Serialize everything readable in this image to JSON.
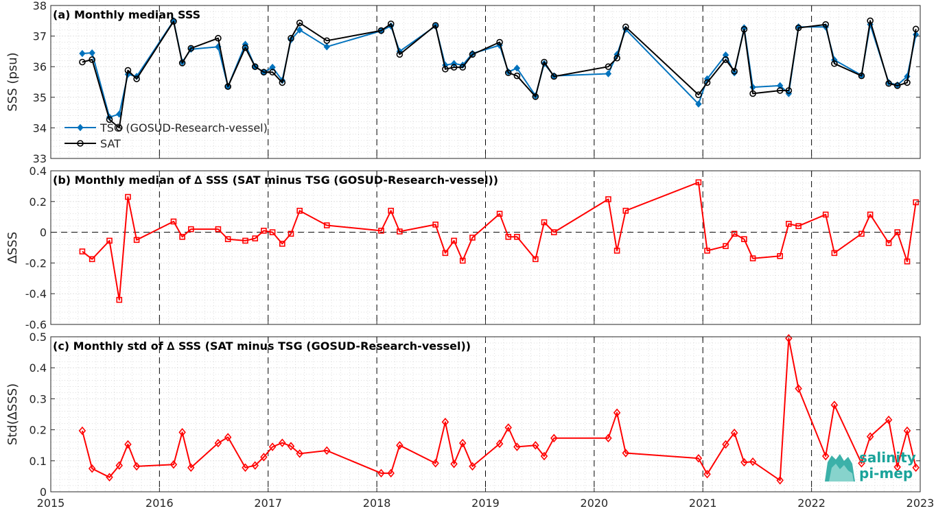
{
  "x_ticks": [
    "2015",
    "2016",
    "2017",
    "2018",
    "2019",
    "2020",
    "2021",
    "2022",
    "2023"
  ],
  "logo": {
    "line1": "salinity",
    "line2": "pi-mep",
    "color": "#1aa39a"
  },
  "chart_data": [
    {
      "type": "line",
      "title": "(a) Monthly median SSS",
      "ylabel": "SSS (psu)",
      "xlim": [
        2015.0,
        2023.0
      ],
      "ylim": [
        33,
        38
      ],
      "yticks": [
        "33",
        "34",
        "35",
        "36",
        "37",
        "38"
      ],
      "grid": true,
      "legend": "lower-left",
      "series": [
        {
          "name": "TSG (GOSUD-Research-vessel)",
          "color": "#0072bd",
          "marker": "diamond",
          "x": [
            2015.29,
            2015.38,
            2015.54,
            2015.63,
            2015.71,
            2015.79,
            2016.13,
            2016.21,
            2016.29,
            2016.54,
            2016.63,
            2016.79,
            2016.88,
            2016.96,
            2017.04,
            2017.13,
            2017.21,
            2017.29,
            2017.54,
            2018.04,
            2018.13,
            2018.21,
            2018.54,
            2018.63,
            2018.71,
            2018.79,
            2018.88,
            2019.13,
            2019.21,
            2019.29,
            2019.46,
            2019.54,
            2019.63,
            2020.13,
            2020.21,
            2020.29,
            2020.96,
            2021.04,
            2021.21,
            2021.29,
            2021.38,
            2021.46,
            2021.71,
            2021.79,
            2021.88,
            2022.13,
            2022.21,
            2022.46,
            2022.54,
            2022.71,
            2022.79,
            2022.88,
            2022.96
          ],
          "y": [
            36.43,
            36.45,
            34.35,
            34.45,
            35.75,
            35.68,
            37.5,
            36.15,
            36.57,
            36.65,
            35.35,
            36.73,
            36.0,
            35.82,
            35.98,
            35.55,
            36.88,
            37.2,
            36.65,
            37.17,
            37.33,
            36.5,
            37.33,
            36.05,
            36.1,
            36.05,
            36.43,
            36.7,
            35.83,
            35.95,
            35.05,
            36.1,
            35.7,
            35.77,
            36.4,
            37.22,
            34.78,
            35.6,
            36.38,
            35.8,
            37.27,
            35.33,
            35.38,
            35.12,
            37.3,
            37.3,
            36.22,
            35.72,
            37.38,
            35.48,
            35.4,
            35.68,
            37.05
          ]
        },
        {
          "name": "SAT",
          "color": "#000000",
          "marker": "circle",
          "x": [
            2015.29,
            2015.38,
            2015.54,
            2015.63,
            2015.71,
            2015.79,
            2016.13,
            2016.21,
            2016.29,
            2016.54,
            2016.63,
            2016.79,
            2016.88,
            2016.96,
            2017.04,
            2017.13,
            2017.21,
            2017.29,
            2017.54,
            2018.04,
            2018.13,
            2018.21,
            2018.54,
            2018.63,
            2018.71,
            2018.79,
            2018.88,
            2019.13,
            2019.21,
            2019.29,
            2019.46,
            2019.54,
            2019.63,
            2020.13,
            2020.21,
            2020.29,
            2020.96,
            2021.04,
            2021.21,
            2021.29,
            2021.38,
            2021.46,
            2021.71,
            2021.79,
            2021.88,
            2022.13,
            2022.21,
            2022.46,
            2022.54,
            2022.71,
            2022.79,
            2022.88,
            2022.96
          ],
          "y": [
            36.15,
            36.23,
            34.27,
            34.0,
            35.88,
            35.6,
            37.48,
            36.12,
            36.6,
            36.93,
            35.35,
            36.62,
            36.0,
            35.82,
            35.82,
            35.48,
            36.93,
            37.43,
            36.85,
            37.18,
            37.4,
            36.4,
            37.35,
            35.92,
            35.98,
            35.98,
            36.4,
            36.8,
            35.8,
            35.7,
            35.02,
            36.15,
            35.68,
            36.0,
            36.28,
            37.3,
            35.08,
            35.48,
            36.23,
            35.85,
            37.22,
            35.12,
            35.22,
            35.22,
            37.27,
            37.38,
            36.1,
            35.7,
            37.5,
            35.45,
            35.38,
            35.48,
            37.23
          ]
        }
      ]
    },
    {
      "type": "line",
      "title": "(b) Monthly median of ∆ SSS (SAT minus TSG (GOSUD-Research-vessel))",
      "ylabel": "∆SSS",
      "xlim": [
        2015.0,
        2023.0
      ],
      "ylim": [
        -0.6,
        0.4
      ],
      "yticks": [
        "-0.6",
        "-0.4",
        "-0.2",
        "0",
        "0.2",
        "0.4"
      ],
      "grid": true,
      "series": [
        {
          "name": "",
          "color": "#ff0000",
          "marker": "square",
          "x": [
            2015.29,
            2015.38,
            2015.54,
            2015.63,
            2015.71,
            2015.79,
            2016.13,
            2016.21,
            2016.29,
            2016.54,
            2016.63,
            2016.79,
            2016.88,
            2016.96,
            2017.04,
            2017.13,
            2017.21,
            2017.29,
            2017.54,
            2018.04,
            2018.13,
            2018.21,
            2018.54,
            2018.63,
            2018.71,
            2018.79,
            2018.88,
            2019.13,
            2019.21,
            2019.29,
            2019.46,
            2019.54,
            2019.63,
            2020.13,
            2020.21,
            2020.29,
            2020.96,
            2021.04,
            2021.21,
            2021.29,
            2021.38,
            2021.46,
            2021.71,
            2021.79,
            2021.88,
            2022.13,
            2022.21,
            2022.46,
            2022.54,
            2022.71,
            2022.79,
            2022.88,
            2022.96
          ],
          "y": [
            -0.125,
            -0.175,
            -0.055,
            -0.44,
            0.23,
            -0.05,
            0.07,
            -0.03,
            0.02,
            0.02,
            -0.045,
            -0.055,
            -0.04,
            0.01,
            0.0,
            -0.075,
            -0.01,
            0.14,
            0.045,
            0.01,
            0.14,
            0.005,
            0.05,
            -0.135,
            -0.055,
            -0.185,
            -0.035,
            0.12,
            -0.03,
            -0.03,
            -0.175,
            0.065,
            0.0,
            0.215,
            -0.12,
            0.14,
            0.325,
            -0.12,
            -0.09,
            -0.01,
            -0.045,
            -0.17,
            -0.155,
            0.055,
            0.04,
            0.115,
            -0.135,
            -0.01,
            0.115,
            -0.07,
            0.0,
            -0.19,
            0.195
          ]
        }
      ]
    },
    {
      "type": "line",
      "title": "(c) Monthly std of ∆ SSS (SAT minus TSG (GOSUD-Research-vessel))",
      "ylabel": "Std(∆SSS)",
      "xlim": [
        2015.0,
        2023.0
      ],
      "ylim": [
        0,
        0.5
      ],
      "yticks": [
        "0",
        "0.1",
        "0.2",
        "0.3",
        "0.4",
        "0.5"
      ],
      "grid": true,
      "series": [
        {
          "name": "",
          "color": "#ff0000",
          "marker": "diamond-open",
          "x": [
            2015.29,
            2015.38,
            2015.54,
            2015.63,
            2015.71,
            2015.79,
            2016.13,
            2016.21,
            2016.29,
            2016.54,
            2016.63,
            2016.79,
            2016.88,
            2016.96,
            2017.04,
            2017.13,
            2017.21,
            2017.29,
            2017.54,
            2018.04,
            2018.13,
            2018.21,
            2018.54,
            2018.63,
            2018.71,
            2018.79,
            2018.88,
            2019.13,
            2019.21,
            2019.29,
            2019.46,
            2019.54,
            2019.63,
            2020.13,
            2020.21,
            2020.29,
            2020.96,
            2021.04,
            2021.21,
            2021.29,
            2021.38,
            2021.46,
            2021.71,
            2021.79,
            2021.88,
            2022.13,
            2022.21,
            2022.46,
            2022.54,
            2022.71,
            2022.79,
            2022.88,
            2022.96
          ],
          "y": [
            0.197,
            0.075,
            0.047,
            0.085,
            0.153,
            0.082,
            0.088,
            0.192,
            0.078,
            0.157,
            0.176,
            0.078,
            0.085,
            0.112,
            0.145,
            0.158,
            0.147,
            0.123,
            0.133,
            0.06,
            0.06,
            0.15,
            0.092,
            0.225,
            0.09,
            0.157,
            0.082,
            0.155,
            0.207,
            0.145,
            0.15,
            0.115,
            0.173,
            0.173,
            0.255,
            0.125,
            0.108,
            0.057,
            0.153,
            0.19,
            0.095,
            0.097,
            0.037,
            0.495,
            0.333,
            0.115,
            0.28,
            0.092,
            0.178,
            0.232,
            0.08,
            0.197,
            0.078
          ]
        }
      ]
    }
  ]
}
